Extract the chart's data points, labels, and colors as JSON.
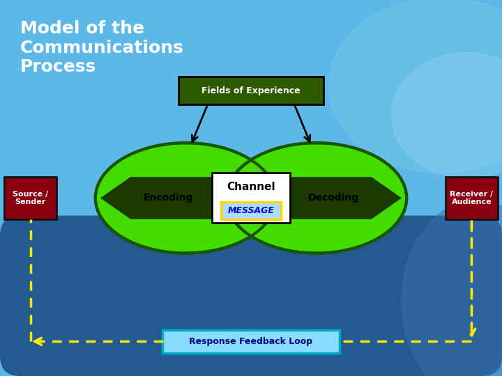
{
  "title": "Model of the\nCommunications\nProcess",
  "title_color": "#FFFFFF",
  "title_fontsize": 18,
  "bg_light": "#5BB8E8",
  "bg_dark": "#1A4A80",
  "ellipse_color": "#44DD00",
  "ellipse_edge_color": "#1A5500",
  "ellipse_dark_band": "#1A3A00",
  "source_box_color": "#8B0010",
  "receiver_box_color": "#8B0010",
  "source_text": "Source /\nSender",
  "receiver_text": "Receiver /\nAudience",
  "encoding_text": "Encoding",
  "decoding_text": "Decoding",
  "channel_text": "Channel",
  "message_text": "MESSAGE",
  "fields_text": "Fields of Experience",
  "feedback_text": "Response Feedback Loop",
  "channel_box_color": "#FFFFFF",
  "channel_box_edge": "#000000",
  "message_box_color": "#AADDFF",
  "message_box_edge": "#FFD700",
  "message_text_color": "#0000CC",
  "feedback_box_color": "#88DDFF",
  "feedback_box_edge": "#00AACC",
  "feedback_text_color": "#000080",
  "arrow_color": "#FFE800",
  "fields_box_color": "#2D5A00",
  "fields_box_edge": "#000000",
  "fields_text_color": "#FFFFFF"
}
